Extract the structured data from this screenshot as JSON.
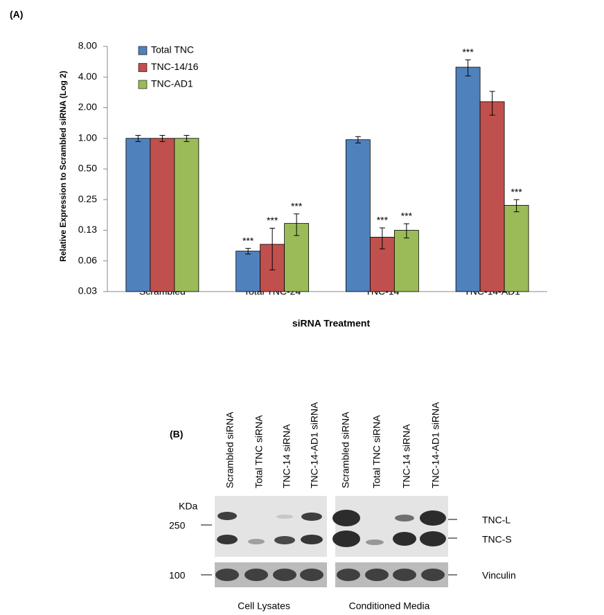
{
  "chart_data": {
    "type": "bar",
    "title": "(A)",
    "x_label": "siRNA Treatment",
    "y_label": "Relative Expression to Scrambled siRNA (Log 2)",
    "categories": [
      "Scrambled",
      "Total TNC-24",
      "TNC-14",
      "TNC-14-AD1"
    ],
    "yscale": "log",
    "log_base": 2,
    "ylim": [
      0.03125,
      8
    ],
    "yticks": [
      {
        "value": 0.03125,
        "label": "0.03"
      },
      {
        "value": 0.0625,
        "label": "0.06"
      },
      {
        "value": 0.125,
        "label": "0.13"
      },
      0.25,
      {
        "value": 0.5,
        "label": "0.50"
      },
      {
        "value": 1,
        "label": "1.00"
      },
      {
        "value": 2,
        "label": "2.00"
      },
      {
        "value": 4,
        "label": "4.00"
      },
      {
        "value": 8,
        "label": "8.00"
      }
    ],
    "grid": false,
    "legend": "upper left",
    "series": [
      {
        "name": "Total TNC",
        "color": "#4f81bd",
        "values": [
          1,
          0.078,
          0.97,
          5.0
        ],
        "errors": [
          0.07,
          0.005,
          0.07,
          0.9
        ],
        "significance": [
          null,
          "***",
          null,
          "***"
        ]
      },
      {
        "name": "TNC-14/16",
        "color": "#c0504d",
        "values": [
          1,
          0.091,
          0.107,
          2.29
        ],
        "errors": [
          0.07,
          0.04,
          0.025,
          0.6
        ],
        "significance": [
          null,
          "***",
          "***",
          null
        ]
      },
      {
        "name": "TNC-AD1",
        "color": "#9bbb59",
        "values": [
          1,
          0.146,
          0.125,
          0.22
        ],
        "errors": [
          0.07,
          0.035,
          0.02,
          0.03
        ],
        "significance": [
          null,
          "***",
          "***",
          "***"
        ]
      }
    ]
  },
  "blot": {
    "label": "(B)",
    "lanes": [
      "Scrambled siRNA",
      "Total TNC siRNA",
      "TNC-14 siRNA",
      "TNC-14-AD1 siRNA",
      "Scrambled siRNA",
      "Total TNC siRNA",
      "TNC-14 siRNA",
      "TNC-14-AD1 siRNA"
    ],
    "marker_unit": "KDa",
    "markers": [
      "250",
      "100"
    ],
    "bands": [
      "TNC-L",
      "TNC-S",
      "Vinculin"
    ],
    "groups": [
      "Cell Lysates",
      "Conditioned Media"
    ]
  }
}
